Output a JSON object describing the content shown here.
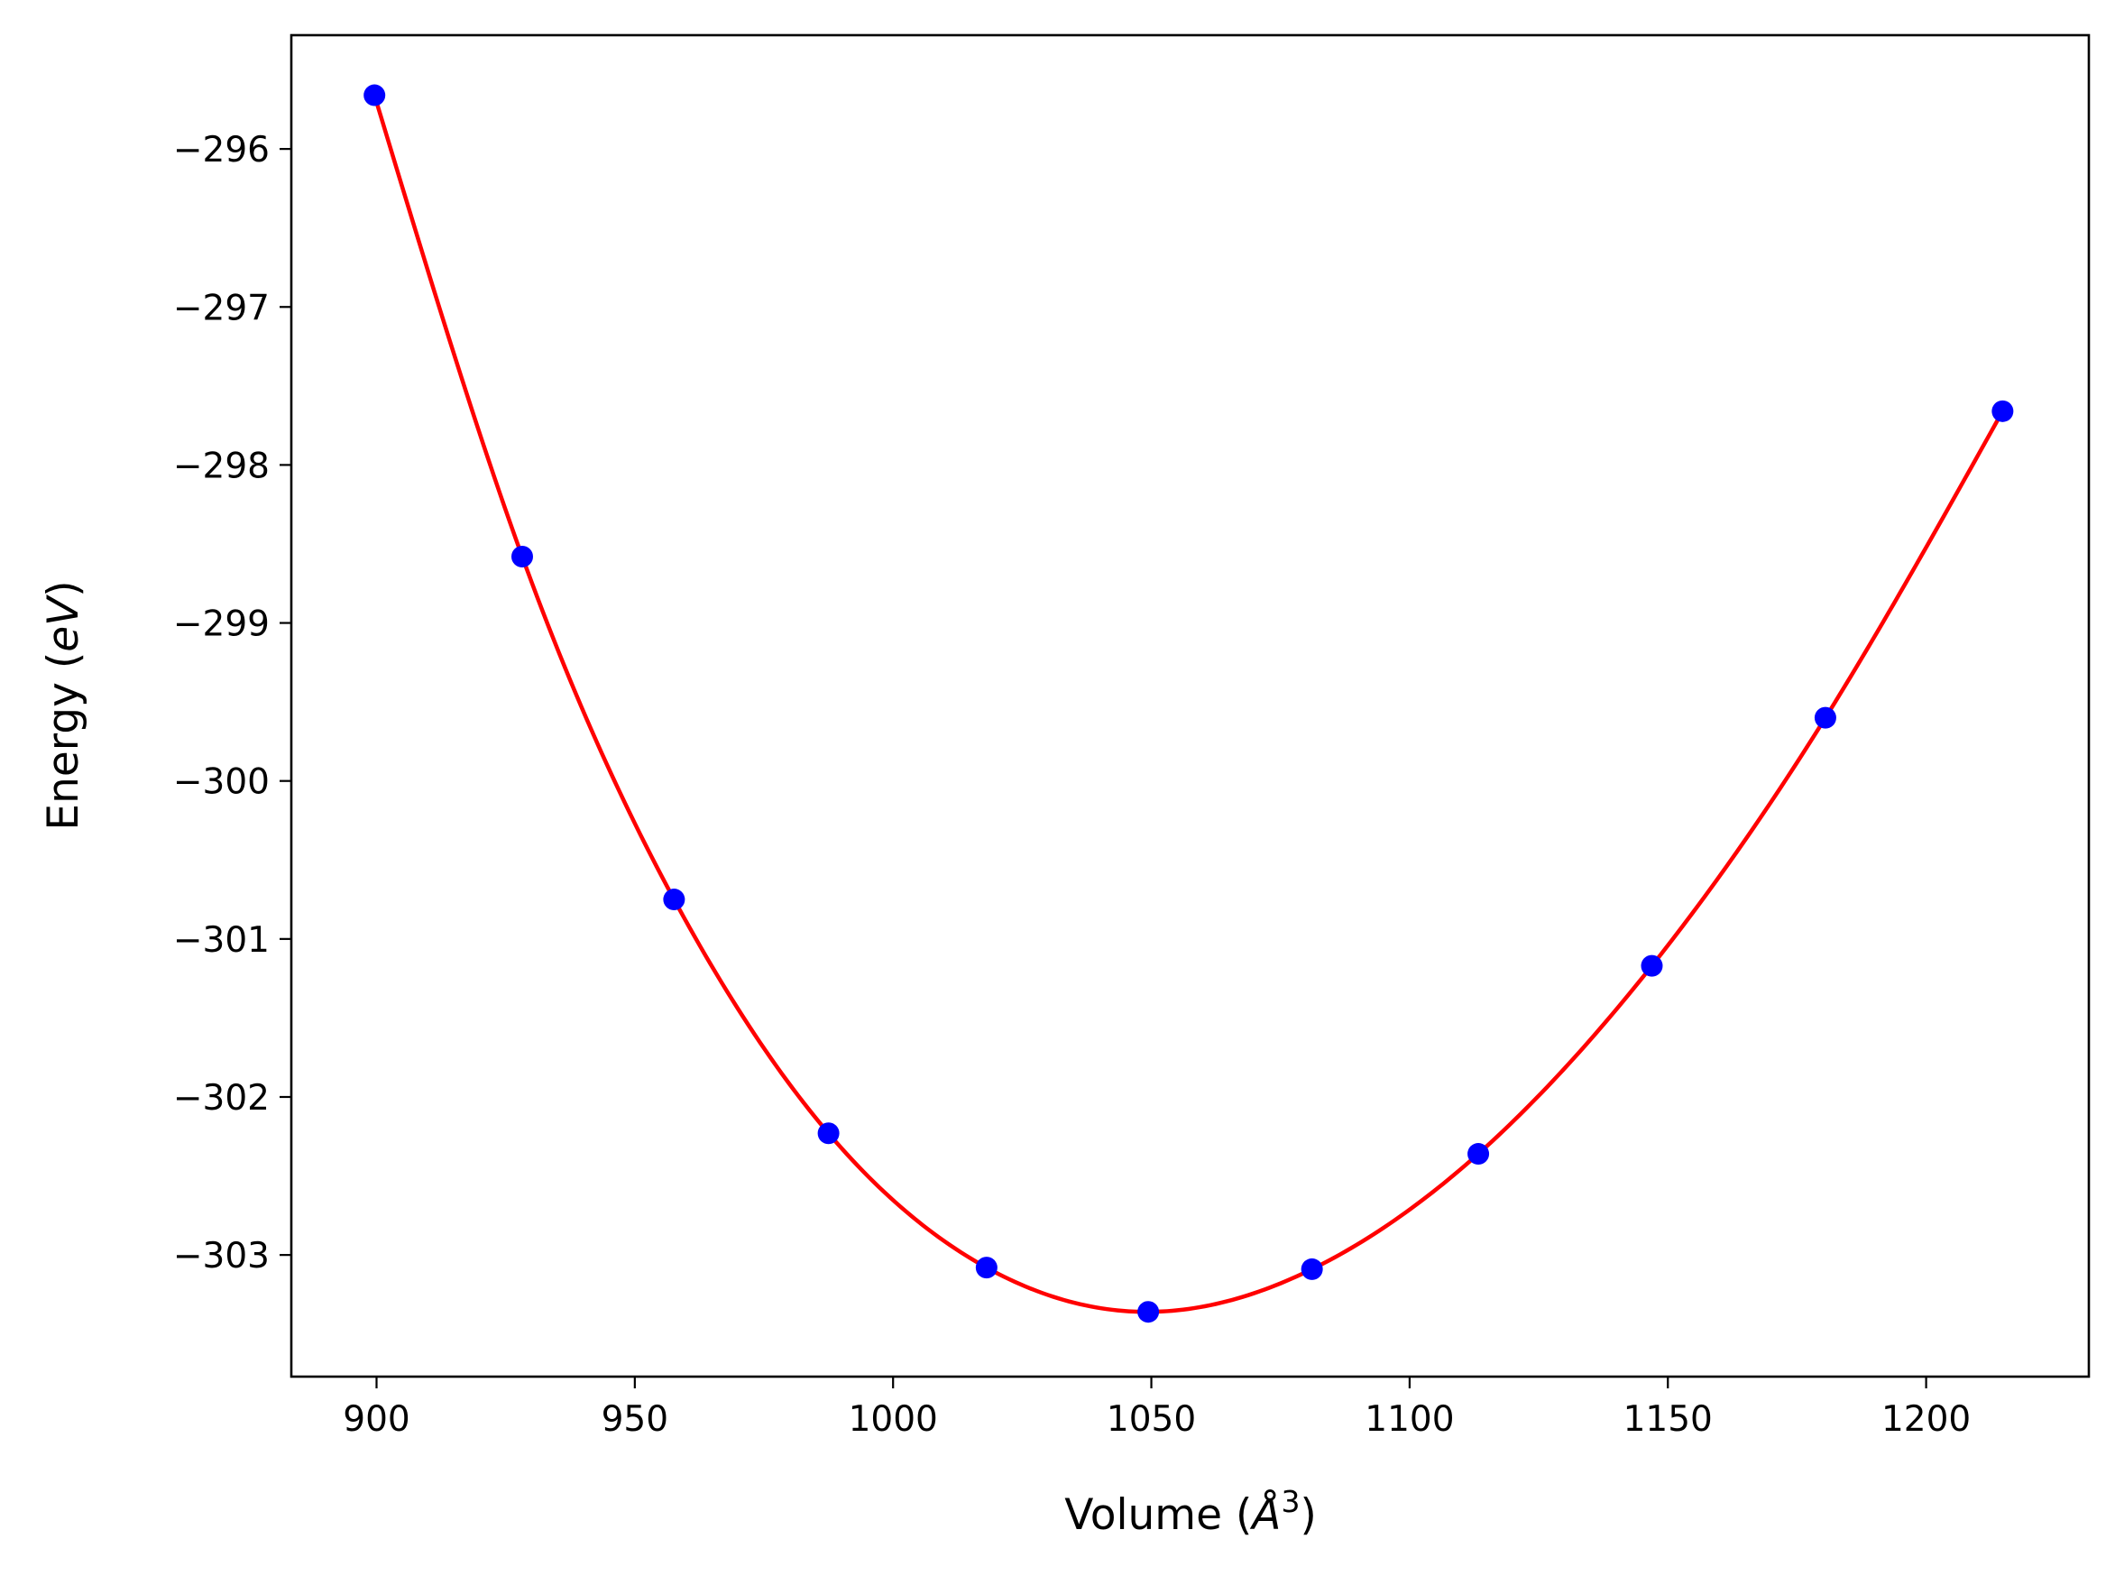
{
  "chart_data": {
    "type": "scatter",
    "title": "",
    "xlabel_parts": {
      "base": "Volume (",
      "symbol": "Å",
      "exp": "3",
      "close": ")"
    },
    "ylabel_parts": {
      "base": "Energy (",
      "unit": "eV",
      "close": ")"
    },
    "xlim": [
      883.5,
      1231.5
    ],
    "ylim": [
      -303.77,
      -295.28
    ],
    "xticks": [
      900,
      950,
      1000,
      1050,
      1100,
      1150,
      1200
    ],
    "xtick_labels": [
      "900",
      "950",
      "1000",
      "1050",
      "1100",
      "1150",
      "1200"
    ],
    "yticks": [
      -296,
      -297,
      -298,
      -299,
      -300,
      -301,
      -302,
      -303
    ],
    "ytick_labels": [
      "−296",
      "−297",
      "−298",
      "−299",
      "−300",
      "−301",
      "−302",
      "−303"
    ],
    "grid": false,
    "legend": "none",
    "series": [
      {
        "kind": "points",
        "color": "#0000ff",
        "x": [
          899.6,
          928.2,
          957.6,
          987.5,
          1018.1,
          1049.4,
          1081.1,
          1113.3,
          1146.9,
          1180.5,
          1214.8
        ],
        "y": [
          -295.66,
          -298.58,
          -300.75,
          -302.23,
          -303.08,
          -303.36,
          -303.09,
          -302.36,
          -301.17,
          -299.6,
          -297.66
        ]
      },
      {
        "kind": "fit-line",
        "color": "#ff0000",
        "x": [
          899.6,
          928.2,
          957.6,
          987.5,
          1018.1,
          1049.4,
          1081.1,
          1113.3,
          1146.9,
          1180.5,
          1214.8
        ],
        "y": [
          -295.66,
          -298.58,
          -300.75,
          -302.23,
          -303.08,
          -303.36,
          -303.09,
          -302.36,
          -301.17,
          -299.6,
          -297.66
        ]
      }
    ]
  }
}
